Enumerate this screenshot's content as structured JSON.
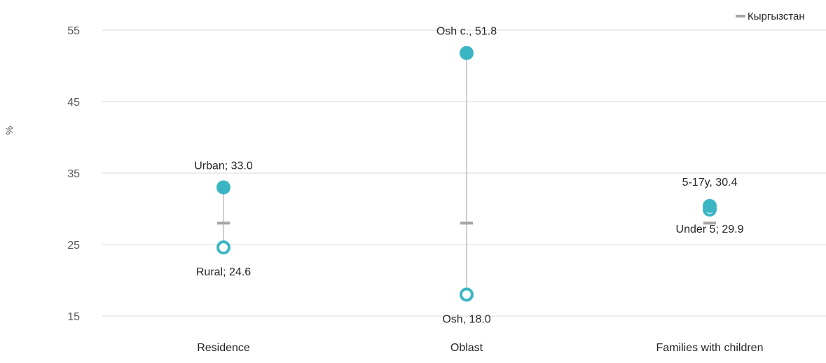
{
  "chart_data": {
    "type": "dot-range",
    "ylabel": "%",
    "ylim": [
      15,
      55
    ],
    "yticks": [
      15,
      25,
      35,
      45,
      55
    ],
    "grid": true,
    "legend": {
      "label": "Кыргызстан",
      "placement": "top-right"
    },
    "reference_value": 28.0,
    "categories": [
      "Residence",
      "Oblast",
      "Families with children"
    ],
    "groups": [
      {
        "category": "Residence",
        "high": {
          "label": "Urban; 33.0",
          "value": 33.0
        },
        "low": {
          "label": "Rural; 24.6",
          "value": 24.6
        }
      },
      {
        "category": "Oblast",
        "high": {
          "label": "Osh c., 51.8",
          "value": 51.8
        },
        "low": {
          "label": "Osh, 18.0",
          "value": 18.0
        }
      },
      {
        "category": "Families with children",
        "high": {
          "label": "5-17y, 30.4",
          "value": 30.4
        },
        "low": {
          "label": "Under 5; 29.9",
          "value": 29.9
        }
      }
    ]
  },
  "colors": {
    "marker": "#3bb5c4",
    "reference": "#a6a6a6",
    "connector": "#bfbfbf",
    "grid": "#d9d9d9"
  }
}
